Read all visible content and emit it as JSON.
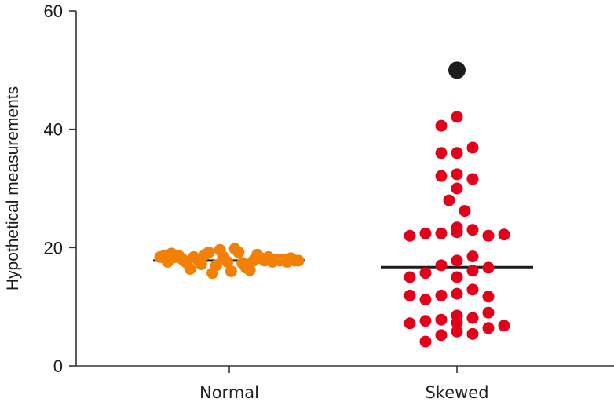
{
  "chart_data": {
    "type": "scatter",
    "subtype": "dot-plot",
    "title": "",
    "xlabel": "",
    "ylabel": "Hypothetical measurements",
    "ylim": [
      0,
      60
    ],
    "yticks": [
      0,
      20,
      40,
      60
    ],
    "ytick_labels": [
      "0",
      "20",
      "40",
      "60"
    ],
    "categories": [
      "Normal",
      "Skewed"
    ],
    "grid": false,
    "legend": "none",
    "colors": {
      "Normal": "#f28005",
      "Skewed": "#e3001b",
      "outlier": "#1c1c1c",
      "median_line": "#1c1c1c",
      "axis": "#333333"
    },
    "series": [
      {
        "name": "Normal",
        "median": 17.8,
        "values": [
          18.4,
          18.6,
          17.6,
          19.0,
          18.4,
          18.6,
          18.0,
          17.5,
          16.4,
          18.4,
          18.0,
          17.2,
          18.8,
          19.2,
          15.7,
          17.0,
          19.6,
          18.4,
          17.6,
          16.0,
          19.8,
          19.2,
          17.4,
          16.6,
          16.2,
          17.8,
          18.8,
          18.2,
          17.8,
          18.4,
          17.6,
          18.0,
          17.8,
          18.0,
          17.6,
          18.2,
          17.8,
          17.8
        ]
      },
      {
        "name": "Skewed",
        "median": 16.7,
        "values": [
          42.1,
          40.6,
          36.0,
          36.0,
          36.9,
          32.4,
          32.1,
          31.6,
          30.0,
          28.0,
          26.2,
          23.4,
          22.4,
          23.0,
          22.4,
          22.0,
          22.0,
          22.2,
          22.7,
          22.6,
          22.6,
          17.8,
          17.0,
          18.5,
          16.1,
          15.7,
          16.6,
          15.0,
          15.0,
          12.2,
          11.9,
          12.9,
          11.2,
          11.7,
          11.9,
          8.5,
          7.8,
          8.1,
          9.0,
          7.6,
          7.2,
          6.4,
          6.8,
          5.8,
          5.2,
          5.4,
          7.3,
          4.1
        ],
        "outliers": [
          50.0
        ]
      }
    ]
  }
}
